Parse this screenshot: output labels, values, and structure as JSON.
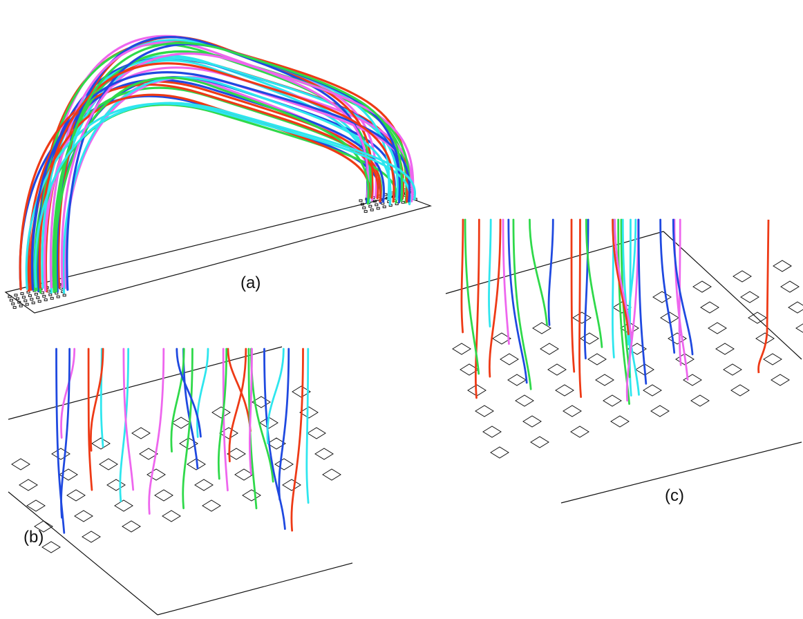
{
  "labels": {
    "a": "(a)",
    "b": "(b)",
    "c": "(c)"
  },
  "colors": {
    "blue": "#1f49e0",
    "red": "#ee3a16",
    "green": "#2fd94a",
    "cyan": "#2ee6ee",
    "magenta": "#ee66ee",
    "outline": "#111111"
  },
  "panels": [
    {
      "id": "a",
      "description_key": "wire-bond-arch-overview"
    },
    {
      "id": "b",
      "description_key": "wire-bond-closeup-left"
    },
    {
      "id": "c",
      "description_key": "wire-bond-closeup-right"
    }
  ]
}
